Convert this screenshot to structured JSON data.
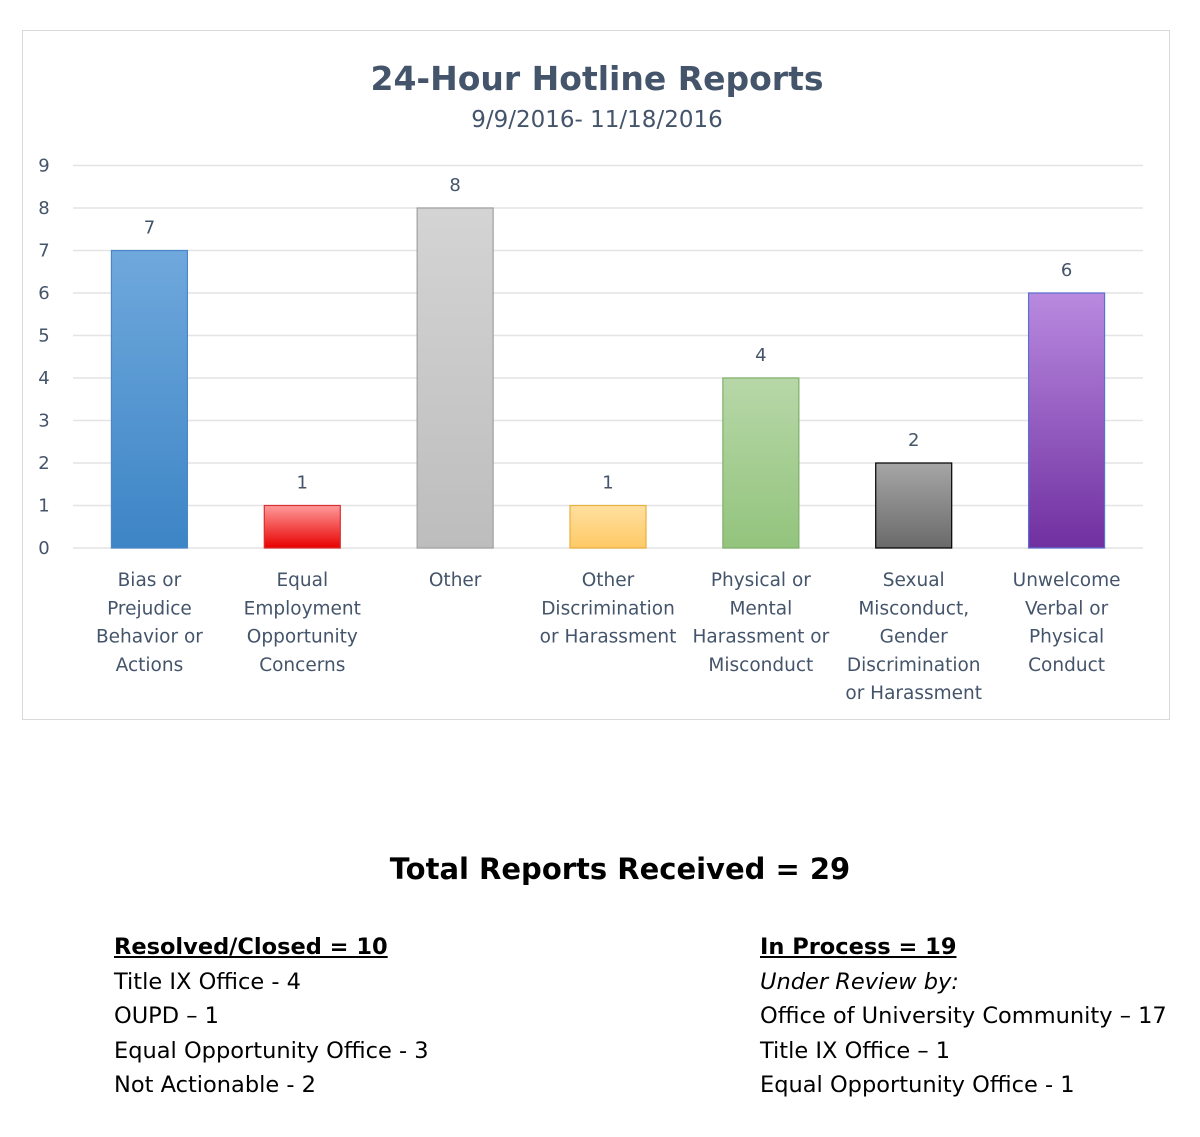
{
  "chart_data": {
    "type": "bar",
    "title": "24-Hour Hotline Reports",
    "subtitle": "9/9/2016- 11/18/2016",
    "xlabel": "",
    "ylabel": "",
    "ylim": [
      0,
      9
    ],
    "yticks": [
      "0",
      "1",
      "2",
      "3",
      "4",
      "5",
      "6",
      "7",
      "8",
      "9"
    ],
    "grid": true,
    "legend": "none",
    "categories": [
      [
        "Bias or",
        "Prejudice",
        "Behavior or",
        "Actions"
      ],
      [
        "Equal",
        "Employment",
        "Opportunity",
        "Concerns"
      ],
      [
        "Other"
      ],
      [
        "Other",
        "Discrimination",
        "or Harassment"
      ],
      [
        "Physical or",
        "Mental",
        "Harassment or",
        "Misconduct"
      ],
      [
        "Sexual",
        "Misconduct,",
        "Gender",
        "Discrimination",
        "or Harassment"
      ],
      [
        "Unwelcome",
        "Verbal or",
        "Physical",
        "Conduct"
      ]
    ],
    "values": [
      7,
      1,
      8,
      1,
      4,
      2,
      6
    ],
    "data_labels": [
      "7",
      "1",
      "8",
      "1",
      "4",
      "2",
      "6"
    ],
    "colors": [
      {
        "top": "#6fa8dc",
        "bottom": "#3d85c6",
        "stroke": "#4a86c8"
      },
      {
        "top": "#ff9a9a",
        "bottom": "#e80000",
        "stroke": "#d83030"
      },
      {
        "top": "#d4d4d4",
        "bottom": "#bdbdbd",
        "stroke": "#a0a0a0"
      },
      {
        "top": "#ffe0a0",
        "bottom": "#ffc966",
        "stroke": "#e8b040"
      },
      {
        "top": "#b7d7a8",
        "bottom": "#93c47d",
        "stroke": "#7fb06a"
      },
      {
        "top": "#a6a6a6",
        "bottom": "#6a6a6a",
        "stroke": "#000000"
      },
      {
        "top": "#b98ae0",
        "bottom": "#7030a0",
        "stroke": "#5b6fd0"
      }
    ]
  },
  "summary": {
    "total": "Total Reports Received = 29",
    "resolved": {
      "heading": "Resolved/Closed = 10",
      "items": [
        "Title IX Office - 4",
        "OUPD – 1",
        "Equal Opportunity Office - 3",
        "Not Actionable - 2"
      ]
    },
    "in_process": {
      "heading": "In Process = 19",
      "subheading": "Under Review by:",
      "items": [
        "Office of University Community – 17",
        "Title IX Office – 1",
        "Equal Opportunity Office - 1"
      ]
    }
  }
}
